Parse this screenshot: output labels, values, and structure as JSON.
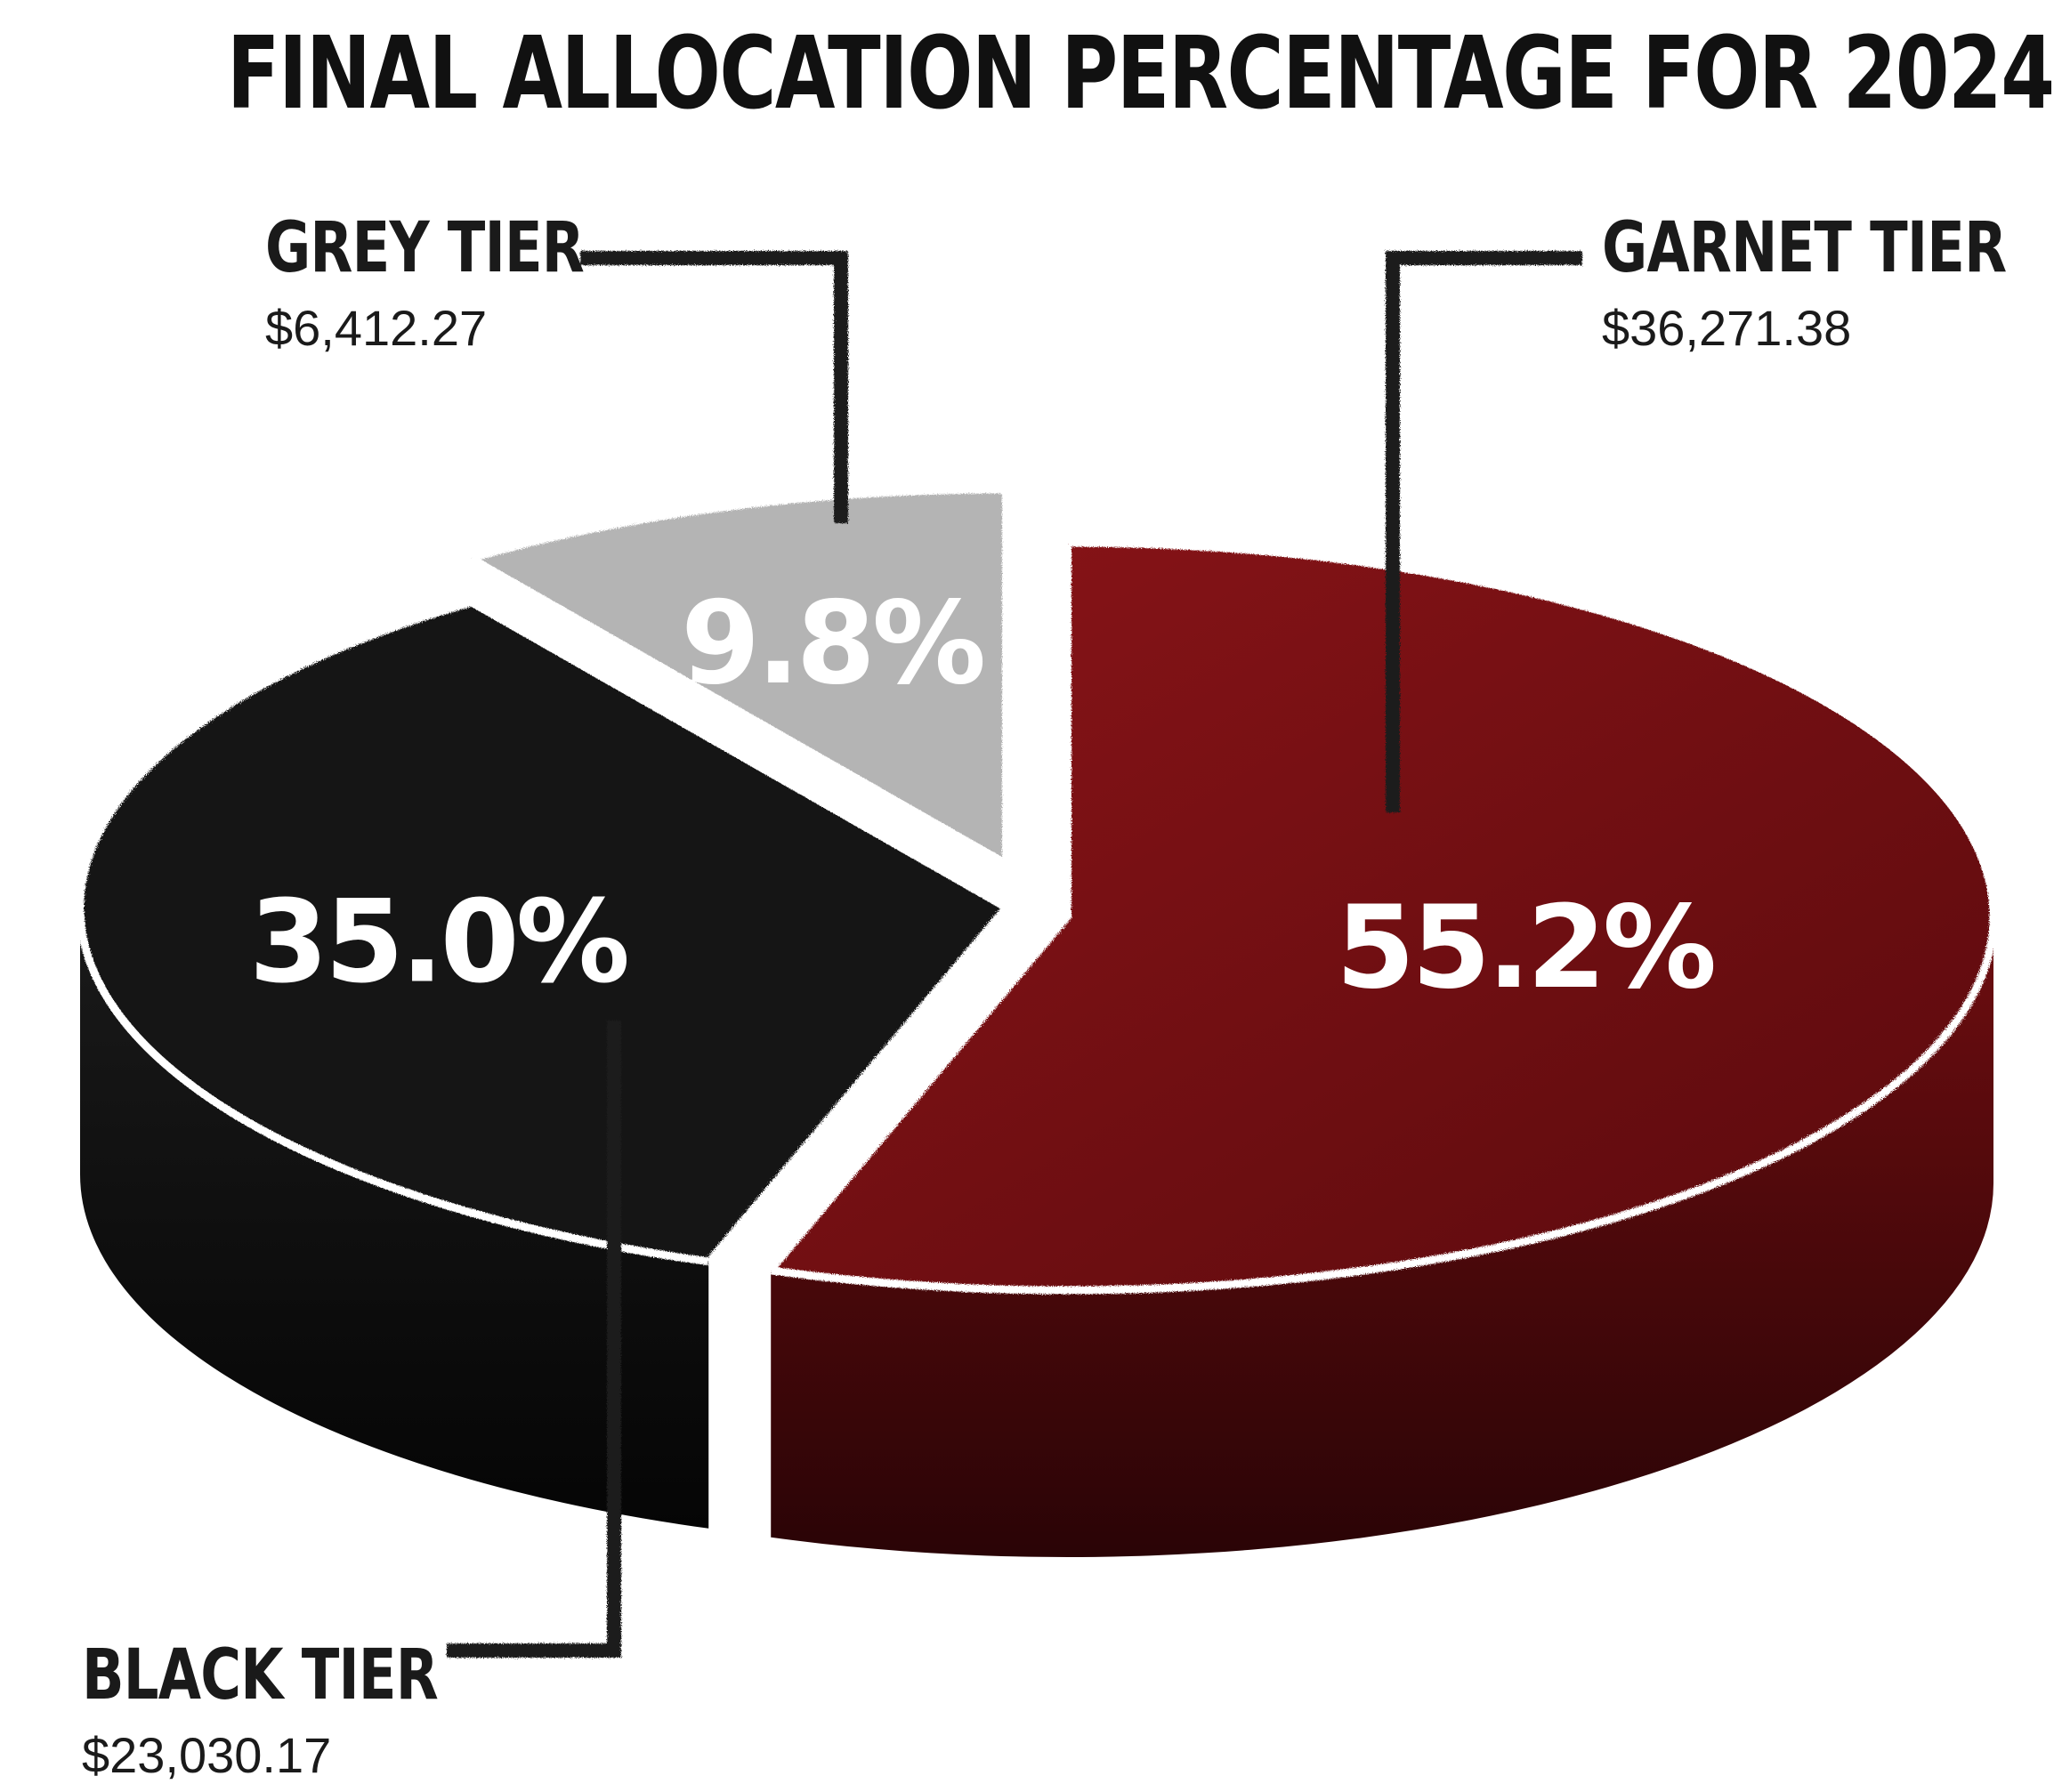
{
  "title": "FINAL ALLOCATION PERCENTAGE FOR 2024",
  "chart_data": {
    "type": "pie",
    "title": "FINAL ALLOCATION PERCENTAGE FOR 2024",
    "style": "3d-exploded-grunge",
    "slices": [
      {
        "name": "GARNET TIER",
        "amount": "$36,271.38",
        "value": 55.2,
        "label": "55.2%",
        "color": "#7a0f12"
      },
      {
        "name": "BLACK TIER",
        "amount": "$23,030.17",
        "value": 35.0,
        "label": "35.0%",
        "color": "#141414"
      },
      {
        "name": "GREY TIER",
        "amount": "$6,412.27",
        "value": 9.8,
        "label": "9.8%",
        "color": "#b4b4b4"
      }
    ]
  }
}
